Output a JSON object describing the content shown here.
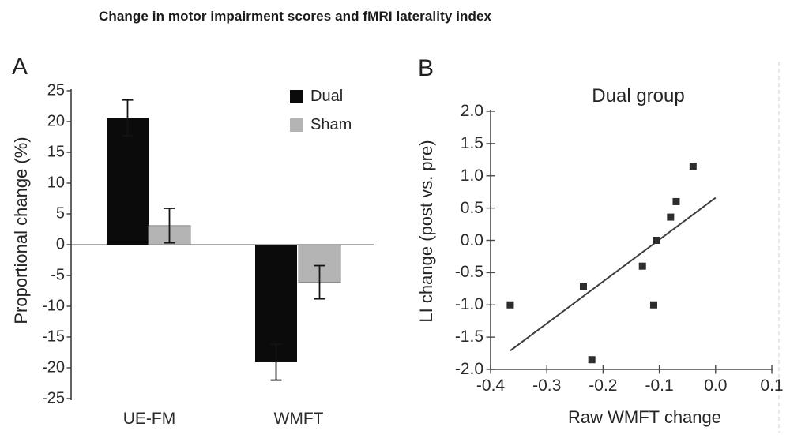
{
  "figure": {
    "title": "Change in motor impairment scores and fMRI laterality index"
  },
  "panels": {
    "a_label": "A",
    "b_label": "B"
  },
  "chart_data": [
    {
      "type": "bar",
      "panel": "A",
      "ylabel": "Proportional change (%)",
      "categories": [
        "UE-FM",
        "WMFT"
      ],
      "series": [
        {
          "name": "Dual",
          "color": "#0b0b0b",
          "values": [
            20.6,
            -19.1
          ],
          "errors": [
            2.9,
            2.9
          ]
        },
        {
          "name": "Sham",
          "color": "#b4b4b4",
          "values": [
            3.1,
            -6.1
          ],
          "errors": [
            2.8,
            2.7
          ]
        }
      ],
      "ylim": [
        -25,
        25
      ],
      "ytick_labels": [
        "25",
        "20",
        "15",
        "10",
        "5",
        "0",
        "-5",
        "-10",
        "-15",
        "-20",
        "-25"
      ],
      "legend_position": "top-right",
      "grid": false,
      "zero_line": true
    },
    {
      "type": "scatter",
      "panel": "B",
      "title": "Dual group",
      "xlabel": "Raw WMFT change",
      "ylabel": "LI change (post vs. pre)",
      "points": [
        [
          -0.365,
          -1.0
        ],
        [
          -0.235,
          -0.72
        ],
        [
          -0.22,
          -1.85
        ],
        [
          -0.13,
          -0.4
        ],
        [
          -0.11,
          -1.0
        ],
        [
          -0.105,
          0.0
        ],
        [
          -0.08,
          0.36
        ],
        [
          -0.07,
          0.6
        ],
        [
          -0.04,
          1.15
        ]
      ],
      "trendline": {
        "x1": -0.365,
        "y1": -1.71,
        "x2": 0.0,
        "y2": 0.66
      },
      "xlim": [
        -0.4,
        0.1
      ],
      "ylim": [
        -2.0,
        2.0
      ],
      "xtick_labels": [
        "-0.4",
        "-0.3",
        "-0.2",
        "-0.1",
        "0.0",
        "0.1"
      ],
      "ytick_labels": [
        "2.0",
        "1.5",
        "1.0",
        "0.5",
        "0.0",
        "-0.5",
        "-1.0",
        "-1.5",
        "-2.0"
      ],
      "marker": "square",
      "marker_color": "#2d2d2d",
      "grid": false
    }
  ]
}
